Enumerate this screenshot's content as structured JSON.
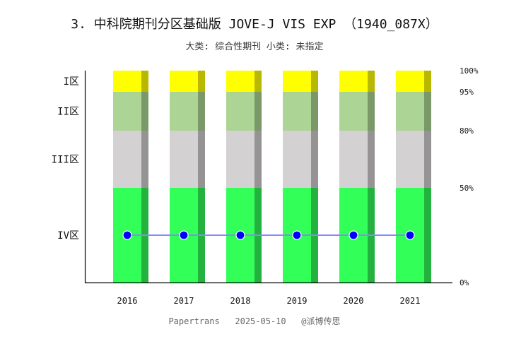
{
  "chart_data": {
    "type": "bar",
    "title": "3. 中科院期刊分区基础版 JOVE-J VIS EXP （1940_087X）",
    "subtitle": "大类: 综合性期刊 小类: 未指定",
    "categories": [
      "2016",
      "2017",
      "2018",
      "2019",
      "2020",
      "2021"
    ],
    "zones": [
      {
        "label": "I区",
        "from": 95,
        "to": 100,
        "color": "#ffff00",
        "shade": "#b8b800"
      },
      {
        "label": "II区",
        "from": 80,
        "to": 95,
        "color": "#acd494",
        "shade": "#7a9868"
      },
      {
        "label": "III区",
        "from": 50,
        "to": 80,
        "color": "#d3d1d2",
        "shade": "#959394"
      },
      {
        "label": "IV区",
        "from": 0,
        "to": 50,
        "color": "#33ff59",
        "shade": "#24b23f"
      }
    ],
    "right_ticks": [
      "100%",
      "95%",
      "80%",
      "50%",
      "0%"
    ],
    "series": [
      {
        "zone_values": [
          "IV区",
          "IV区",
          "IV区",
          "IV区",
          "IV区",
          "IV区"
        ],
        "color": "#0000ff",
        "line_color": "#8888ff"
      }
    ],
    "footer": "Papertrans   2025-05-10   @派博传思"
  }
}
